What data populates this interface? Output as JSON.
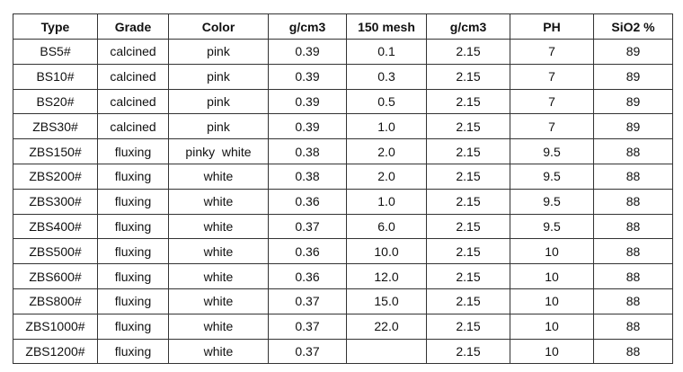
{
  "table": {
    "header": [
      "Type",
      "Grade",
      "Color",
      "g/cm3",
      "150 mesh",
      "g/cm3",
      "PH",
      "SiO2 %"
    ],
    "rows": [
      [
        "BS5#",
        "calcined",
        "pink",
        "0.39",
        "0.1",
        "2.15",
        "7",
        "89"
      ],
      [
        "BS10#",
        "calcined",
        "pink",
        "0.39",
        "0.3",
        "2.15",
        "7",
        "89"
      ],
      [
        "BS20#",
        "calcined",
        "pink",
        "0.39",
        "0.5",
        "2.15",
        "7",
        "89"
      ],
      [
        "ZBS30#",
        "calcined",
        "pink",
        "0.39",
        "1.0",
        "2.15",
        "7",
        "89"
      ],
      [
        "ZBS150#",
        "fluxing",
        "pinky  white",
        "0.38",
        "2.0",
        "2.15",
        "9.5",
        "88"
      ],
      [
        "ZBS200#",
        "fluxing",
        "white",
        "0.38",
        "2.0",
        "2.15",
        "9.5",
        "88"
      ],
      [
        "ZBS300#",
        "fluxing",
        "white",
        "0.36",
        "1.0",
        "2.15",
        "9.5",
        "88"
      ],
      [
        "ZBS400#",
        "fluxing",
        "white",
        "0.37",
        "6.0",
        "2.15",
        "9.5",
        "88"
      ],
      [
        "ZBS500#",
        "fluxing",
        "white",
        "0.36",
        "10.0",
        "2.15",
        "10",
        "88"
      ],
      [
        "ZBS600#",
        "fluxing",
        "white",
        "0.36",
        "12.0",
        "2.15",
        "10",
        "88"
      ],
      [
        "ZBS800#",
        "fluxing",
        "white",
        "0.37",
        "15.0",
        "2.15",
        "10",
        "88"
      ],
      [
        "ZBS1000#",
        "fluxing",
        "white",
        "0.37",
        "22.0",
        "2.15",
        "10",
        "88"
      ],
      [
        "ZBS1200#",
        "fluxing",
        "white",
        "0.37",
        null,
        "2.15",
        "10",
        "88"
      ]
    ]
  }
}
